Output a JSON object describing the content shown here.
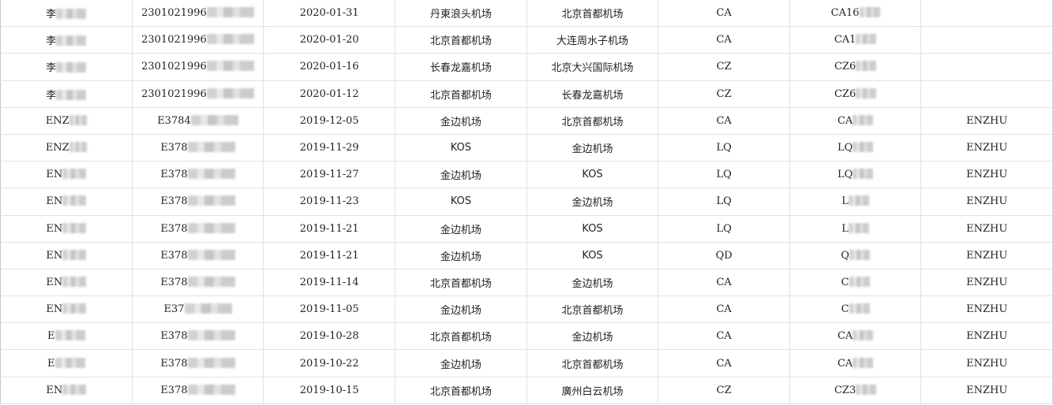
{
  "rows": [
    {
      "name": "李",
      "id": "2301021996",
      "date": "2020-01-31",
      "from": "丹東浪头机场",
      "to": "北京首都机场",
      "airline": "CA",
      "flight": "CA16",
      "extra": ""
    },
    {
      "name": "李",
      "id": "2301021996",
      "date": "2020-01-20",
      "from": "北京首都机场",
      "to": "大连周水子机场",
      "airline": "CA",
      "flight": "CA1",
      "extra": ""
    },
    {
      "name": "李",
      "id": "2301021996",
      "date": "2020-01-16",
      "from": "长春龙嘉机场",
      "to": "北京大兴国际机场",
      "airline": "CZ",
      "flight": "CZ6",
      "extra": ""
    },
    {
      "name": "李",
      "id": "2301021996",
      "date": "2020-01-12",
      "from": "北京首都机场",
      "to": "长春龙嘉机场",
      "airline": "CZ",
      "flight": "CZ6",
      "extra": ""
    },
    {
      "name": "ENZ",
      "id": "E3784",
      "date": "2019-12-05",
      "from": "金边机场",
      "to": "北京首都机场",
      "airline": "CA",
      "flight": "CA",
      "extra": "ENZHU"
    },
    {
      "name": "ENZ",
      "id": "E378",
      "date": "2019-11-29",
      "from": "KOS",
      "to": "金边机场",
      "airline": "LQ",
      "flight": "LQ",
      "extra": "ENZHU"
    },
    {
      "name": "EN",
      "id": "E378",
      "date": "2019-11-27",
      "from": "金边机场",
      "to": "KOS",
      "airline": "LQ",
      "flight": "LQ",
      "extra": "ENZHU"
    },
    {
      "name": "EN",
      "id": "E378",
      "date": "2019-11-23",
      "from": "KOS",
      "to": "金边机场",
      "airline": "LQ",
      "flight": "L",
      "extra": "ENZHU"
    },
    {
      "name": "EN",
      "id": "E378",
      "date": "2019-11-21",
      "from": "金边机场",
      "to": "KOS",
      "airline": "LQ",
      "flight": "L",
      "extra": "ENZHU"
    },
    {
      "name": "EN",
      "id": "E378",
      "date": "2019-11-21",
      "from": "金边机场",
      "to": "KOS",
      "airline": "QD",
      "flight": "Q",
      "extra": "ENZHU"
    },
    {
      "name": "EN",
      "id": "E378",
      "date": "2019-11-14",
      "from": "北京首都机场",
      "to": "金边机场",
      "airline": "CA",
      "flight": "C",
      "extra": "ENZHU"
    },
    {
      "name": "EN",
      "id": "E37",
      "date": "2019-11-05",
      "from": "金边机场",
      "to": "北京首都机场",
      "airline": "CA",
      "flight": "C",
      "extra": "ENZHU"
    },
    {
      "name": "E",
      "id": "E378",
      "date": "2019-10-28",
      "from": "北京首都机场",
      "to": "金边机场",
      "airline": "CA",
      "flight": "CA",
      "extra": "ENZHU"
    },
    {
      "name": "E",
      "id": "E378",
      "date": "2019-10-22",
      "from": "金边机场",
      "to": "北京首都机场",
      "airline": "CA",
      "flight": "CA",
      "extra": "ENZHU"
    },
    {
      "name": "EN",
      "id": "E378",
      "date": "2019-10-15",
      "from": "北京首都机场",
      "to": "廣州白云机场",
      "airline": "CZ",
      "flight": "CZ3",
      "extra": "ENZHU"
    }
  ],
  "selected_row": 13,
  "colors": {
    "grid": "#e1e1e1",
    "selection": "#1e7145"
  }
}
